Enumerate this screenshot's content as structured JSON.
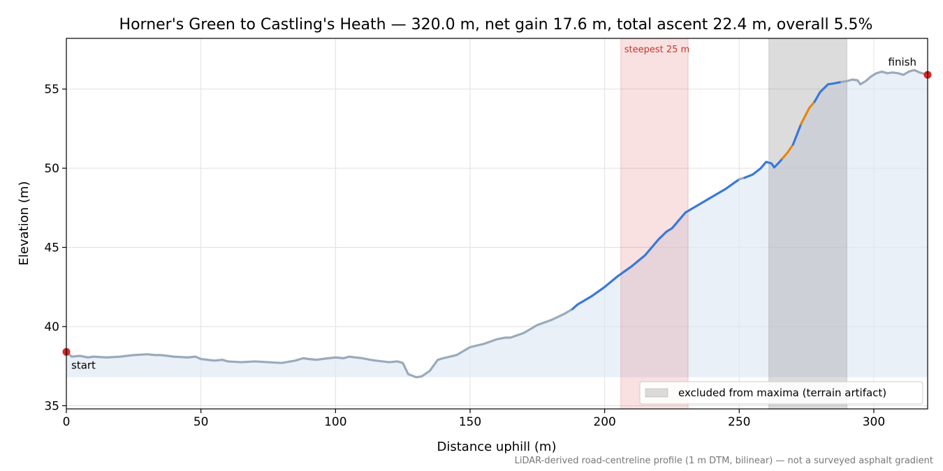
{
  "chart_data": {
    "type": "area",
    "title": "Horner's Green to Castling's Heath — 320.0 m, net gain 17.6 m, total ascent 22.4 m, overall 5.5%",
    "xlabel": "Distance uphill (m)",
    "ylabel": "Elevation (m)",
    "xlim": [
      0,
      320
    ],
    "ylim": [
      34.8,
      58.2
    ],
    "xticks": [
      0,
      50,
      100,
      150,
      200,
      250,
      300
    ],
    "yticks": [
      35,
      40,
      45,
      50,
      55
    ],
    "grid": true,
    "fill_baseline": 36.8,
    "x": [
      0,
      2,
      5,
      8,
      10,
      15,
      20,
      25,
      30,
      33,
      35,
      40,
      45,
      48,
      50,
      55,
      58,
      60,
      65,
      70,
      75,
      80,
      85,
      88,
      90,
      93,
      95,
      100,
      103,
      105,
      110,
      113,
      115,
      120,
      123,
      125,
      127,
      130,
      132,
      135,
      138,
      140,
      145,
      148,
      150,
      155,
      160,
      163,
      165,
      170,
      175,
      180,
      185,
      188,
      190,
      195,
      200,
      205,
      210,
      215,
      220,
      223,
      225,
      230,
      233,
      235,
      240,
      243,
      245,
      250,
      252,
      255,
      258,
      260,
      262,
      263,
      265,
      268,
      270,
      273,
      276,
      278,
      280,
      283,
      285,
      288,
      290,
      292,
      294,
      295,
      297,
      299,
      301,
      303,
      305,
      307,
      309,
      311,
      313,
      315,
      317,
      320
    ],
    "elevation": [
      38.4,
      38.1,
      38.15,
      38.05,
      38.1,
      38.05,
      38.1,
      38.2,
      38.25,
      38.2,
      38.2,
      38.1,
      38.05,
      38.1,
      37.95,
      37.85,
      37.9,
      37.8,
      37.75,
      37.8,
      37.75,
      37.7,
      37.85,
      38.0,
      37.95,
      37.9,
      37.95,
      38.05,
      38.0,
      38.1,
      38.0,
      37.9,
      37.85,
      37.75,
      37.8,
      37.7,
      37.0,
      36.8,
      36.85,
      37.2,
      37.9,
      38.0,
      38.2,
      38.5,
      38.7,
      38.9,
      39.2,
      39.3,
      39.3,
      39.6,
      40.1,
      40.4,
      40.8,
      41.1,
      41.4,
      41.9,
      42.5,
      43.2,
      43.8,
      44.5,
      45.5,
      46.0,
      46.2,
      47.2,
      47.5,
      47.7,
      48.2,
      48.5,
      48.7,
      49.3,
      49.4,
      49.6,
      50.0,
      50.4,
      50.3,
      50.05,
      50.4,
      51.0,
      51.5,
      52.8,
      53.8,
      54.2,
      54.8,
      55.3,
      55.35,
      55.45,
      55.5,
      55.6,
      55.55,
      55.3,
      55.5,
      55.8,
      56.0,
      56.1,
      56.0,
      56.05,
      56.0,
      55.9,
      56.1,
      56.2,
      56.05,
      55.9
    ],
    "segments": [
      {
        "name": "grey",
        "from": 0,
        "to": 188,
        "color": "#9aaabb"
      },
      {
        "name": "blue",
        "from": 188,
        "to": 250,
        "color": "#3a78d8"
      },
      {
        "name": "grey",
        "from": 250,
        "to": 252,
        "color": "#9aaabb"
      },
      {
        "name": "blue",
        "from": 252,
        "to": 266,
        "color": "#3a78d8"
      },
      {
        "name": "orange",
        "from": 266,
        "to": 270,
        "color": "#e6860f"
      },
      {
        "name": "blue",
        "from": 270,
        "to": 273,
        "color": "#3a78d8"
      },
      {
        "name": "orange",
        "from": 273,
        "to": 278,
        "color": "#e6860f"
      },
      {
        "name": "blue",
        "from": 278,
        "to": 288,
        "color": "#3a78d8"
      },
      {
        "name": "grey",
        "from": 288,
        "to": 320,
        "color": "#9aaabb"
      }
    ],
    "spans": {
      "steepest": {
        "from": 206,
        "to": 231,
        "label": "steepest 25 m",
        "color": "#d62728"
      },
      "excluded": {
        "from": 261,
        "to": 290,
        "color": "#808080"
      }
    },
    "markers": {
      "start": {
        "x": 0,
        "y": 38.4,
        "label": "start"
      },
      "finish": {
        "x": 320,
        "y": 55.9,
        "label": "finish"
      }
    },
    "legend": {
      "entries": [
        "excluded from maxima (terrain artifact)"
      ],
      "placement": "lower-right"
    },
    "footnote": "LiDAR-derived road-centreline profile (1 m DTM, bilinear) — not a surveyed asphalt gradient",
    "colors": {
      "fill": "#dfe8f5",
      "marker": "#d62728",
      "grid": "#e0e0e0"
    }
  }
}
